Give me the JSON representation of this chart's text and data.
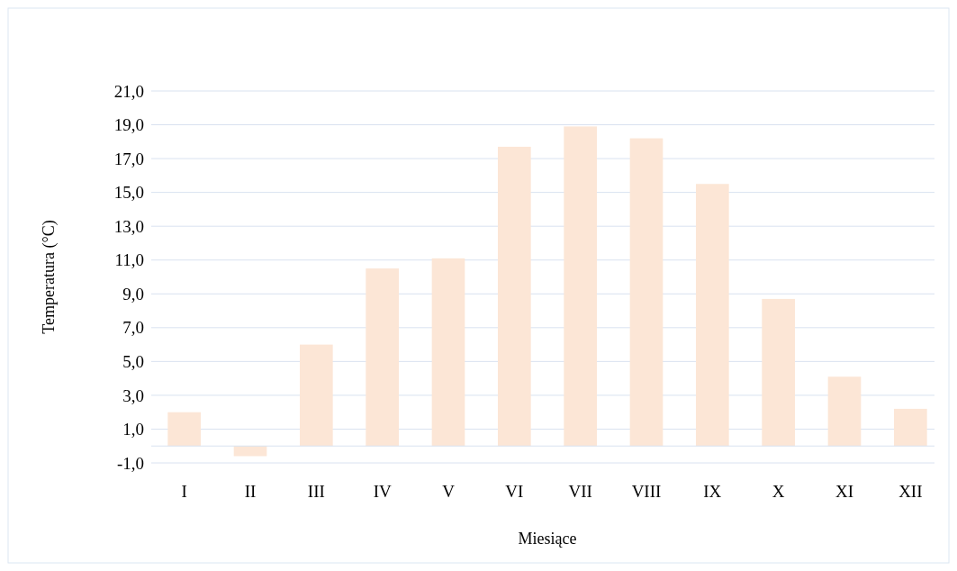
{
  "chart_data": {
    "type": "bar",
    "xlabel": "Miesiące",
    "ylabel": "Temperatura (°C)",
    "categories": [
      "I",
      "II",
      "III",
      "IV",
      "V",
      "VI",
      "VII",
      "VIII",
      "IX",
      "X",
      "XI",
      "XII"
    ],
    "values": [
      2.0,
      -0.6,
      6.0,
      10.5,
      11.1,
      17.7,
      18.9,
      18.2,
      15.5,
      8.7,
      4.1,
      2.2
    ],
    "color": "#fce6d6",
    "ylim": [
      -1,
      21
    ],
    "yticks": [
      {
        "value": -1,
        "label": "-1,0"
      },
      {
        "value": 1,
        "label": "1,0"
      },
      {
        "value": 3,
        "label": "3,0"
      },
      {
        "value": 5,
        "label": "5,0"
      },
      {
        "value": 7,
        "label": "7,0"
      },
      {
        "value": 9,
        "label": "9,0"
      },
      {
        "value": 11,
        "label": "11,0"
      },
      {
        "value": 13,
        "label": "13,0"
      },
      {
        "value": 15,
        "label": "15,0"
      },
      {
        "value": 17,
        "label": "17,0"
      },
      {
        "value": 19,
        "label": "19,0"
      },
      {
        "value": 21,
        "label": "21,0"
      }
    ],
    "grid": "y"
  }
}
